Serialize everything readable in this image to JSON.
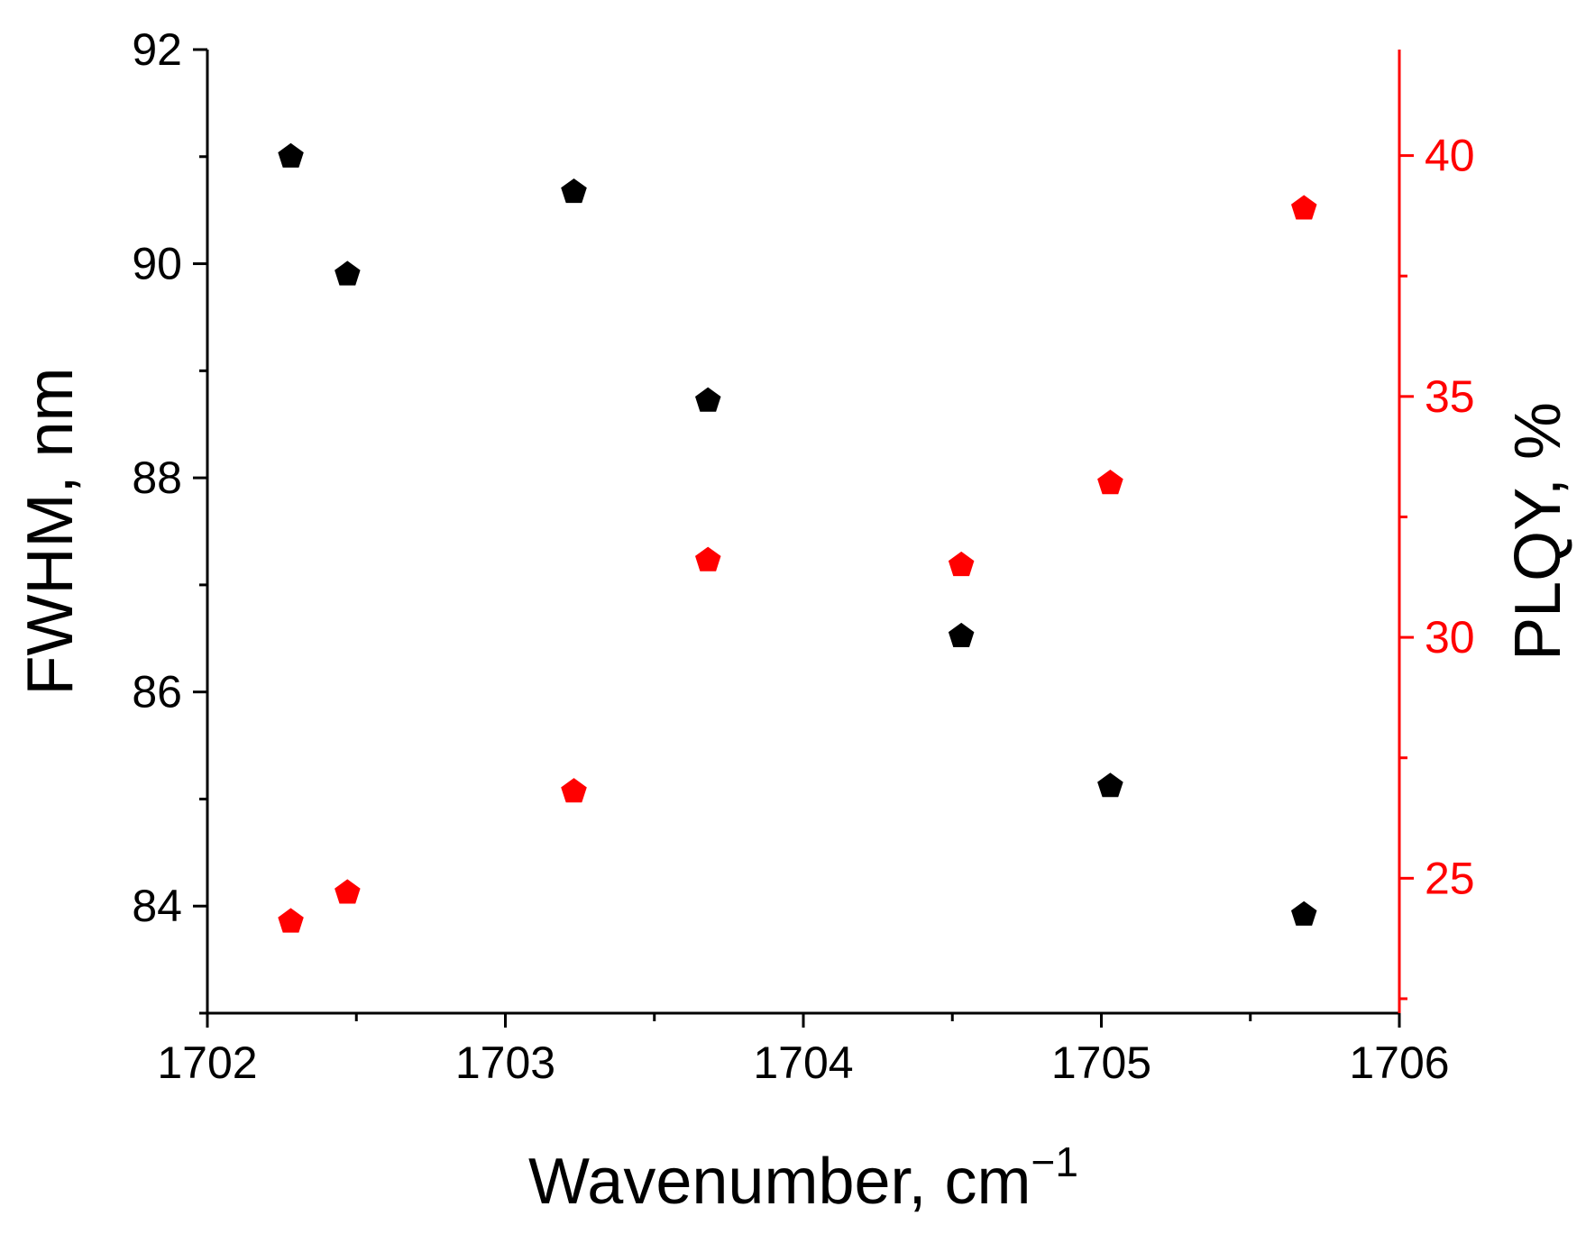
{
  "chart_data": {
    "type": "scatter",
    "xlabel": "Wavenumber, cm",
    "xlabel_sup": "−1",
    "ylabel_left": "FWHM, nm",
    "ylabel_right": "PLQY, %",
    "xlim": [
      1702,
      1706
    ],
    "ylim_left": [
      83,
      92
    ],
    "ylim_right": [
      22.2,
      42.2
    ],
    "x_ticks": [
      1702,
      1703,
      1704,
      1705,
      1706
    ],
    "x_tick_labels": [
      "1702",
      "1703",
      "1704",
      "1705",
      "1706"
    ],
    "y_left_ticks": [
      84,
      86,
      88,
      90,
      92
    ],
    "y_left_tick_labels": [
      "84",
      "86",
      "88",
      "90",
      "92"
    ],
    "y_right_ticks": [
      25,
      30,
      35,
      40
    ],
    "y_right_tick_labels": [
      "25",
      "30",
      "35",
      "40"
    ],
    "left_color": "#000000",
    "right_color": "#ff0000",
    "grid": false,
    "marker": "pentagon",
    "series": [
      {
        "axis": "left",
        "color": "#000000",
        "points": [
          {
            "x": 1702.28,
            "y": 91.0
          },
          {
            "x": 1702.47,
            "y": 89.9
          },
          {
            "x": 1703.23,
            "y": 90.67
          },
          {
            "x": 1703.68,
            "y": 88.72
          },
          {
            "x": 1704.53,
            "y": 86.52
          },
          {
            "x": 1705.03,
            "y": 85.12
          },
          {
            "x": 1705.68,
            "y": 83.92
          }
        ]
      },
      {
        "axis": "right",
        "color": "#ff0000",
        "points": [
          {
            "x": 1702.28,
            "y": 24.1
          },
          {
            "x": 1702.47,
            "y": 24.7
          },
          {
            "x": 1703.23,
            "y": 26.8
          },
          {
            "x": 1703.68,
            "y": 31.6
          },
          {
            "x": 1704.53,
            "y": 31.5
          },
          {
            "x": 1705.03,
            "y": 33.2
          },
          {
            "x": 1705.68,
            "y": 38.9
          }
        ]
      }
    ]
  }
}
